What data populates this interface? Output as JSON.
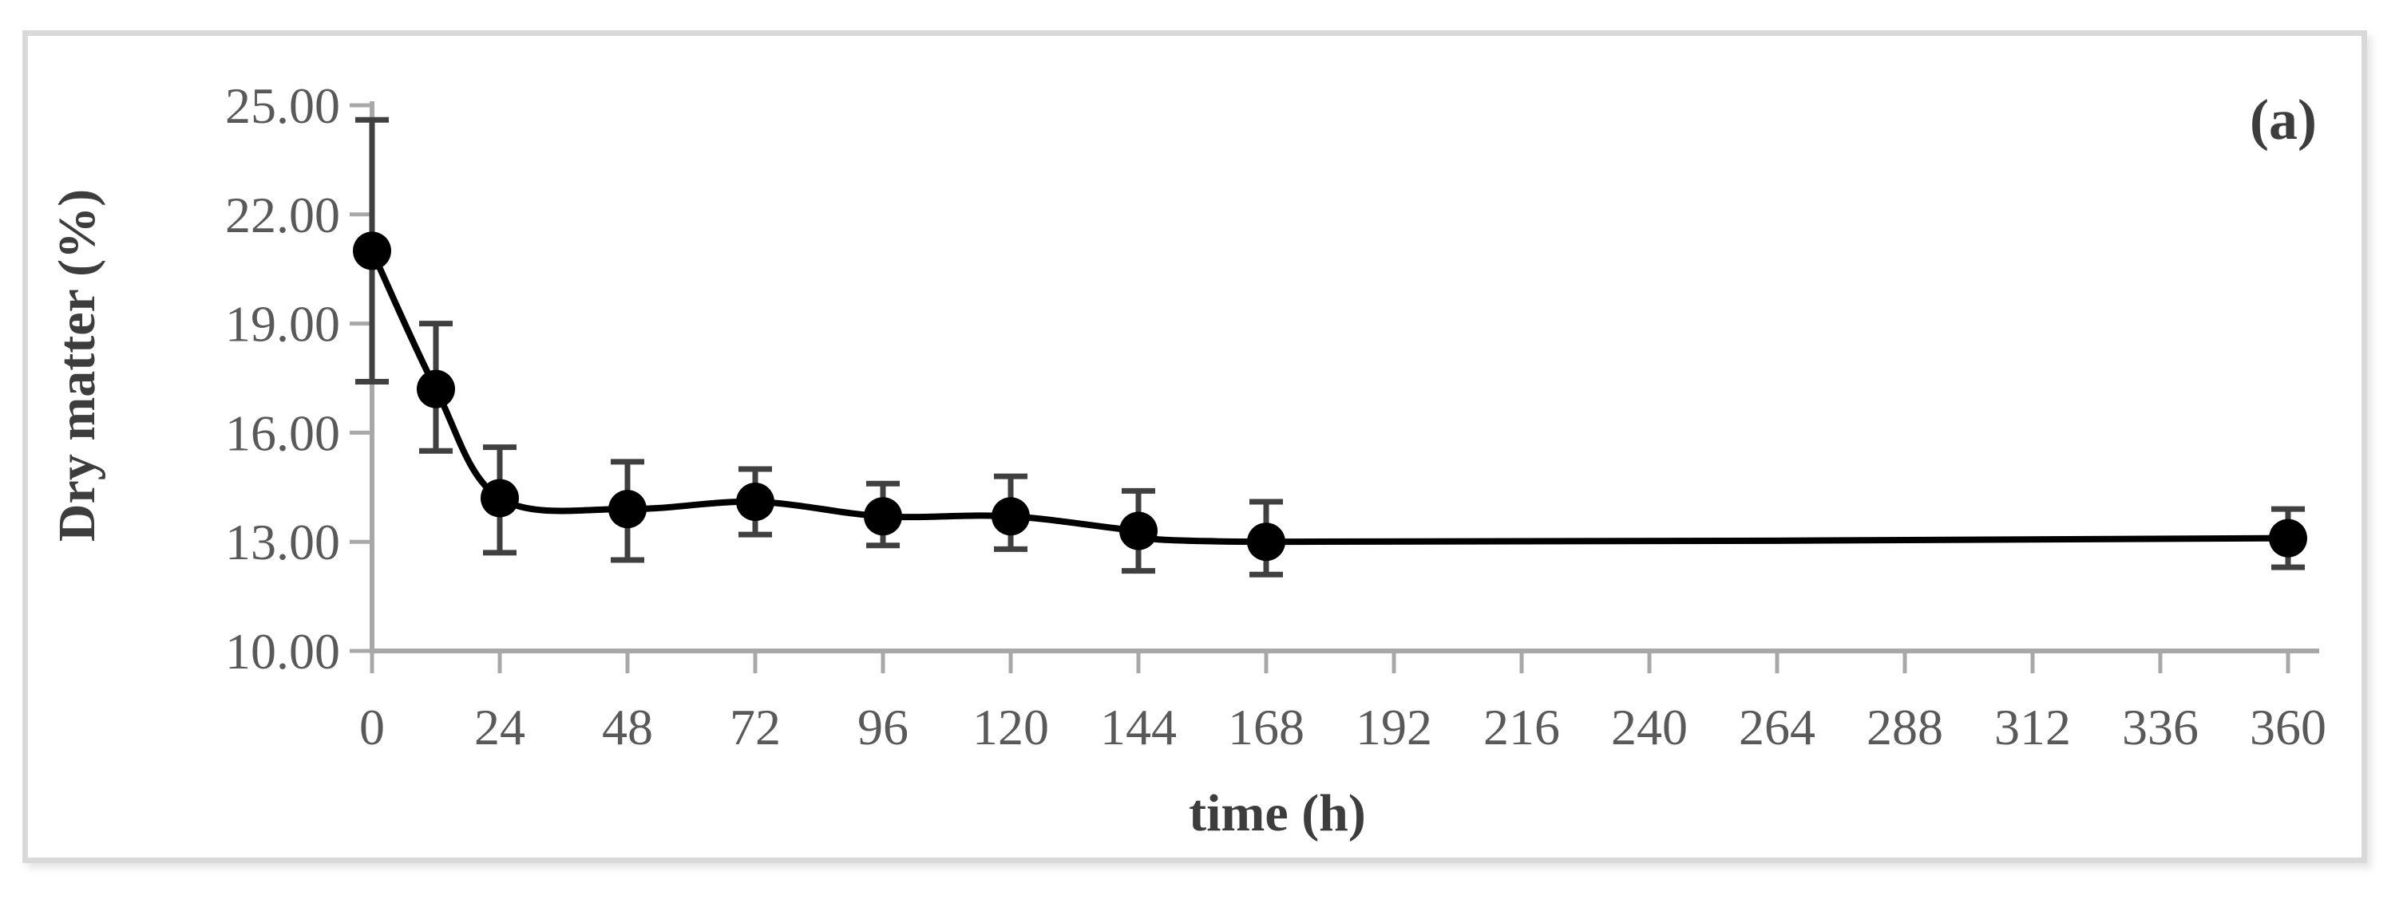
{
  "figure": {
    "panel_label": "(a)",
    "background_color": "#ffffff",
    "frame_border_color": "#d9d9d9"
  },
  "chart_data": {
    "type": "line",
    "title": "",
    "xlabel": "time (h)",
    "ylabel": "Dry matter (%)",
    "xlim": [
      0,
      360
    ],
    "ylim": [
      10,
      25
    ],
    "grid": "off",
    "legend": "none",
    "x_ticks": [
      {
        "v": 0,
        "label": "0"
      },
      {
        "v": 24,
        "label": "24"
      },
      {
        "v": 48,
        "label": "48"
      },
      {
        "v": 72,
        "label": "72"
      },
      {
        "v": 96,
        "label": "96"
      },
      {
        "v": 120,
        "label": "120"
      },
      {
        "v": 144,
        "label": "144"
      },
      {
        "v": 168,
        "label": "168"
      },
      {
        "v": 192,
        "label": "192"
      },
      {
        "v": 216,
        "label": "216"
      },
      {
        "v": 240,
        "label": "240"
      },
      {
        "v": 264,
        "label": "264"
      },
      {
        "v": 288,
        "label": "288"
      },
      {
        "v": 312,
        "label": "312"
      },
      {
        "v": 336,
        "label": "336"
      },
      {
        "v": 360,
        "label": "360"
      }
    ],
    "y_ticks": [
      {
        "v": 10,
        "label": "10.00"
      },
      {
        "v": 13,
        "label": "13.00"
      },
      {
        "v": 16,
        "label": "16.00"
      },
      {
        "v": 19,
        "label": "19.00"
      },
      {
        "v": 22,
        "label": "22.00"
      },
      {
        "v": 25,
        "label": "25.00"
      }
    ],
    "series": [
      {
        "name": "Dry matter",
        "marker": "filled-circle",
        "line_style": "smooth",
        "points": [
          {
            "x": 0,
            "y": 21.0,
            "err_low": 17.4,
            "err_high": 24.6
          },
          {
            "x": 12,
            "y": 17.2,
            "err_low": 15.5,
            "err_high": 19.0
          },
          {
            "x": 24,
            "y": 14.2,
            "err_low": 12.7,
            "err_high": 15.6
          },
          {
            "x": 48,
            "y": 13.9,
            "err_low": 12.5,
            "err_high": 15.2
          },
          {
            "x": 72,
            "y": 14.1,
            "err_low": 13.2,
            "err_high": 15.0
          },
          {
            "x": 96,
            "y": 13.7,
            "err_low": 12.9,
            "err_high": 14.6
          },
          {
            "x": 120,
            "y": 13.7,
            "err_low": 12.8,
            "err_high": 14.8
          },
          {
            "x": 144,
            "y": 13.3,
            "err_low": 12.2,
            "err_high": 14.4
          },
          {
            "x": 168,
            "y": 13.0,
            "err_low": 12.1,
            "err_high": 14.1
          },
          {
            "x": 360,
            "y": 13.1,
            "err_low": 12.3,
            "err_high": 13.9
          }
        ]
      }
    ],
    "colors": {
      "series_line": "#000000",
      "marker_fill": "#000000",
      "error_bar": "#404040",
      "axis_line": "#a8a8a8",
      "tick_mark": "#a8a8a8",
      "tick_label": "#595959",
      "axis_title": "#3d3d3d"
    }
  }
}
